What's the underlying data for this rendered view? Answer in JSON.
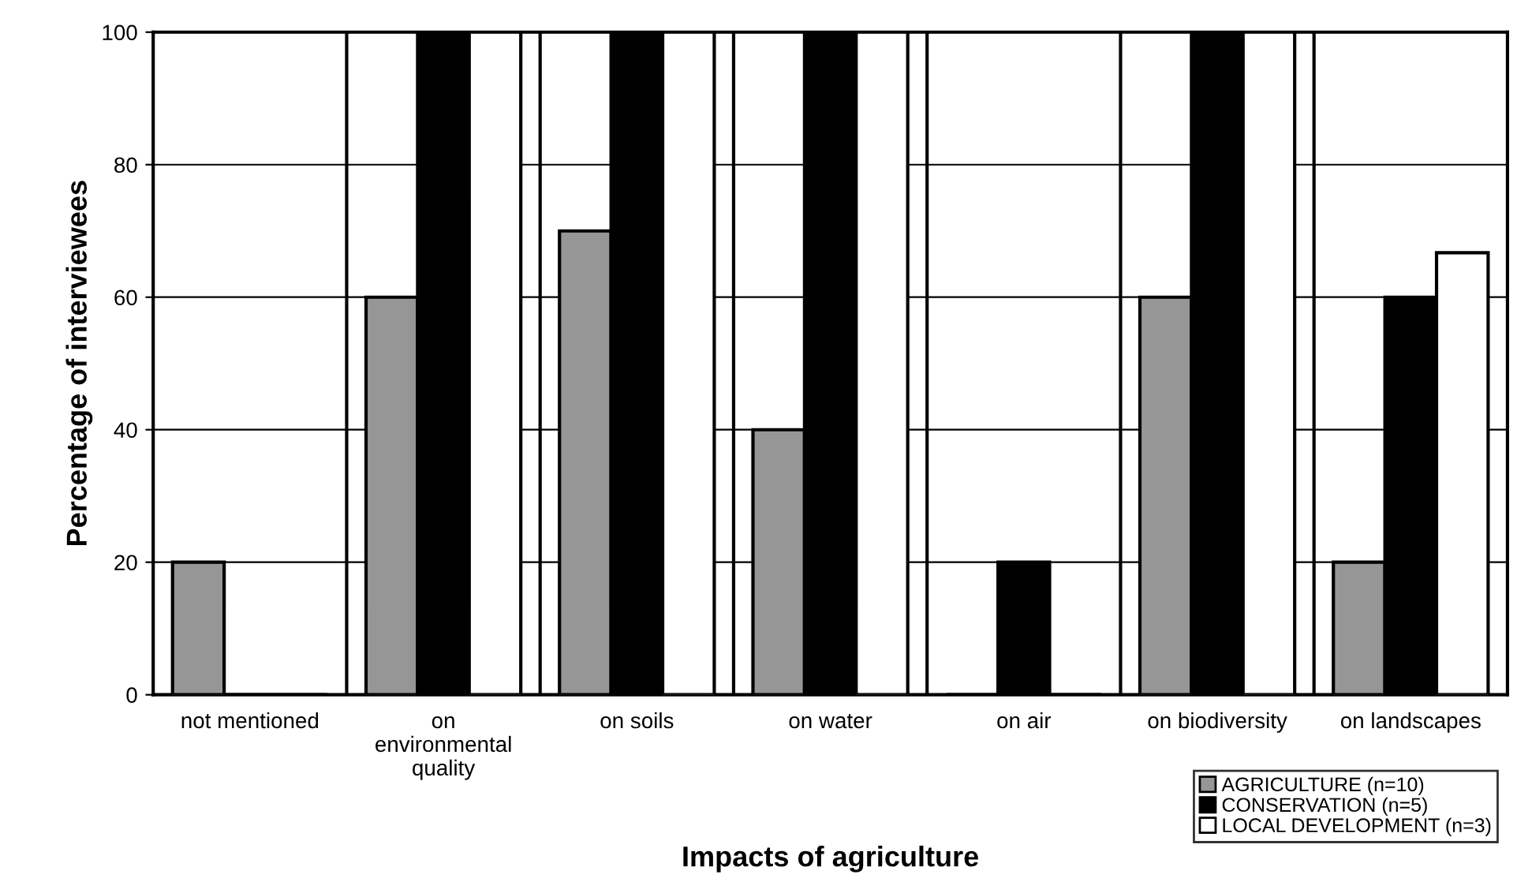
{
  "chart_data": {
    "type": "bar",
    "xlabel": "Impacts of agriculture",
    "ylabel": "Percentage of interviewees",
    "categories": [
      "not mentioned",
      "on\nenvironmental\nquality",
      "on soils",
      "on water",
      "on air",
      "on biodiversity",
      "on landscapes"
    ],
    "series": [
      {
        "name": "AGRICULTURE (n=10)",
        "color": "#969696",
        "values": [
          20,
          60,
          70,
          40,
          0,
          60,
          20
        ]
      },
      {
        "name": "CONSERVATION (n=5)",
        "color": "#000000",
        "values": [
          0,
          100,
          100,
          100,
          20,
          100,
          60
        ]
      },
      {
        "name": "LOCAL DEVELOPMENT (n=3)",
        "color": "#ffffff",
        "values": [
          0,
          100,
          100,
          100,
          0,
          100,
          66.7
        ]
      }
    ],
    "ylim": [
      0,
      100
    ],
    "yticks": [
      0,
      20,
      40,
      60,
      80,
      100
    ],
    "grid": "y",
    "legend": "bottom right"
  }
}
